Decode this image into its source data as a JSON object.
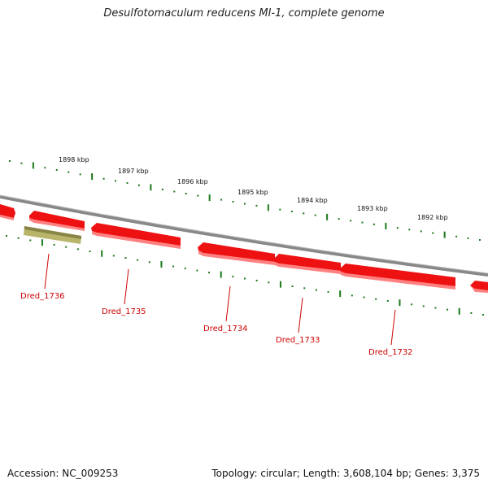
{
  "title": "Desulfotomaculum reducens MI-1, complete genome",
  "footer": {
    "accession": "Accession: NC_009253",
    "summary": "Topology: circular; Length: 3,608,104 bp; Genes: 3,375"
  },
  "scale_labels": [
    "1898 kbp",
    "1897 kbp",
    "1896 kbp",
    "1895 kbp",
    "1894 kbp",
    "1893 kbp",
    "1892 kbp"
  ],
  "genes": [
    {
      "label": "",
      "color": "#ee1111"
    },
    {
      "label": "Dred_1736",
      "color": "#ee1111"
    },
    {
      "label": "Dred_1736",
      "color": "#b8b46a"
    },
    {
      "label": "Dred_1735",
      "color": "#ee1111"
    },
    {
      "label": "Dred_1734",
      "color": "#ee1111"
    },
    {
      "label": "Dred_1733",
      "color": "#ee1111"
    },
    {
      "label": "Dred_1732",
      "color": "#ee1111"
    },
    {
      "label": "",
      "color": "#ee1111"
    }
  ],
  "gene_labels": [
    "Dred_1736",
    "Dred_1735",
    "Dred_1734",
    "Dred_1733",
    "Dred_1732"
  ],
  "colors": {
    "tick": "#1a7a1a",
    "label": "#cc0000",
    "backbone": "#888888"
  }
}
